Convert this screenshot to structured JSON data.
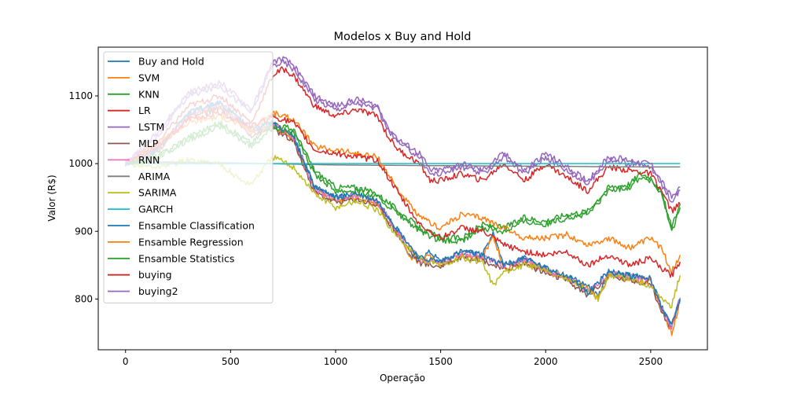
{
  "chart_data": {
    "type": "line",
    "title": "Modelos x Buy and Hold",
    "xlabel": "Operação",
    "ylabel": "Valor (R$)",
    "xlim": [
      -130,
      2770
    ],
    "ylim": [
      725,
      1172
    ],
    "xticks": [
      0,
      500,
      1000,
      1500,
      2000,
      2500
    ],
    "yticks": [
      800,
      900,
      1000,
      1100
    ],
    "grid": false,
    "legend_position": "upper-left",
    "series": [
      {
        "name": "Buy and Hold",
        "color": "#1f77b4",
        "x": [
          0,
          150,
          300,
          450,
          600,
          700,
          800,
          900,
          1000,
          1100,
          1200,
          1250,
          1300,
          1350,
          1400,
          1450,
          1500,
          1600,
          1700,
          1750,
          1800,
          1900,
          2000,
          2100,
          2200,
          2250,
          2300,
          2400,
          2500,
          2550,
          2600,
          2640
        ],
        "y": [
          1000,
          1020,
          1075,
          1090,
          1050,
          1060,
          1040,
          965,
          950,
          955,
          945,
          920,
          900,
          865,
          860,
          870,
          855,
          870,
          865,
          900,
          850,
          860,
          845,
          835,
          820,
          805,
          840,
          835,
          830,
          790,
          760,
          800
        ]
      },
      {
        "name": "SVM",
        "color": "#ff7f0e",
        "x": [
          0,
          150,
          300,
          450,
          600,
          700,
          800,
          900,
          1000,
          1100,
          1200,
          1250,
          1300,
          1350,
          1400,
          1450,
          1500,
          1600,
          1700,
          1750,
          1800,
          1900,
          2000,
          2100,
          2200,
          2250,
          2300,
          2400,
          2500,
          2550,
          2600,
          2640
        ],
        "y": [
          1000,
          1020,
          1070,
          1085,
          1045,
          1055,
          1035,
          960,
          945,
          950,
          940,
          915,
          895,
          860,
          855,
          865,
          850,
          865,
          860,
          895,
          845,
          855,
          840,
          830,
          815,
          800,
          835,
          830,
          825,
          785,
          750,
          795
        ]
      },
      {
        "name": "KNN",
        "color": "#2ca02c",
        "x": [
          0,
          150,
          300,
          450,
          600,
          700,
          800,
          900,
          1000,
          1100,
          1200,
          1300,
          1400,
          1500,
          1600,
          1700,
          1800,
          1900,
          2000,
          2100,
          2200,
          2300,
          2400,
          2450,
          2500,
          2550,
          2600,
          2640
        ],
        "y": [
          1000,
          1010,
          1040,
          1060,
          1030,
          1060,
          1050,
          990,
          965,
          965,
          955,
          930,
          905,
          890,
          890,
          910,
          905,
          920,
          915,
          925,
          930,
          965,
          970,
          985,
          980,
          960,
          905,
          940
        ]
      },
      {
        "name": "LR",
        "color": "#d62728",
        "x": [
          0,
          150,
          300,
          450,
          600,
          700,
          750,
          800,
          900,
          1000,
          1100,
          1200,
          1250,
          1300,
          1400,
          1450,
          1500,
          1600,
          1700,
          1800,
          1900,
          2000,
          2100,
          2200,
          2300,
          2400,
          2500,
          2550,
          2600,
          2640
        ],
        "y": [
          1000,
          1030,
          1085,
          1100,
          1060,
          1130,
          1140,
          1130,
          1085,
          1070,
          1080,
          1070,
          1040,
          1020,
          1000,
          975,
          975,
          985,
          975,
          1000,
          975,
          1000,
          980,
          960,
          995,
          990,
          985,
          960,
          930,
          940
        ]
      },
      {
        "name": "LSTM",
        "color": "#9467bd",
        "x": [
          0,
          150,
          300,
          450,
          600,
          700,
          750,
          800,
          900,
          1000,
          1100,
          1200,
          1250,
          1300,
          1400,
          1450,
          1500,
          1600,
          1700,
          1800,
          1900,
          2000,
          2100,
          2200,
          2300,
          2400,
          2500,
          2550,
          2600,
          2640
        ],
        "y": [
          1000,
          1040,
          1100,
          1115,
          1075,
          1145,
          1150,
          1140,
          1095,
          1080,
          1090,
          1080,
          1050,
          1030,
          1010,
          985,
          985,
          995,
          985,
          1010,
          985,
          1010,
          990,
          970,
          1005,
          1000,
          995,
          970,
          945,
          960
        ]
      },
      {
        "name": "MLP",
        "color": "#8c564b",
        "x": [
          0,
          150,
          300,
          450,
          600,
          700,
          800,
          900,
          1000,
          1100,
          1200,
          1300,
          1400,
          1500,
          1600,
          1700,
          1800,
          1900,
          2000,
          2100,
          2200,
          2300,
          2400,
          2500,
          2550,
          2600,
          2640
        ],
        "y": [
          1000,
          1018,
          1068,
          1082,
          1042,
          1052,
          1032,
          958,
          943,
          948,
          938,
          893,
          853,
          848,
          863,
          858,
          843,
          853,
          838,
          828,
          805,
          833,
          828,
          823,
          783,
          755,
          798
        ]
      },
      {
        "name": "RNN",
        "color": "#e377c2",
        "x": [
          0,
          150,
          300,
          450,
          600,
          700,
          800,
          900,
          1000,
          1100,
          1200,
          1300,
          1400,
          1500,
          1600,
          1700,
          1800,
          1900,
          2000,
          2100,
          2200,
          2300,
          2400,
          2500,
          2550,
          2600,
          2640
        ],
        "y": [
          1000,
          1022,
          1072,
          1088,
          1048,
          1058,
          1038,
          962,
          948,
          953,
          943,
          898,
          858,
          853,
          868,
          863,
          848,
          858,
          843,
          833,
          810,
          838,
          833,
          828,
          788,
          758,
          802
        ]
      },
      {
        "name": "ARIMA",
        "color": "#7f7f7f",
        "x": [
          0,
          500,
          1000,
          1500,
          2000,
          2500,
          2640
        ],
        "y": [
          1003,
          1001,
          998,
          997,
          996,
          995,
          995
        ]
      },
      {
        "name": "SARIMA",
        "color": "#bcbd22",
        "x": [
          0,
          150,
          300,
          450,
          550,
          600,
          650,
          700,
          800,
          900,
          1000,
          1100,
          1200,
          1250,
          1300,
          1400,
          1500,
          1600,
          1700,
          1750,
          1800,
          1900,
          2000,
          2100,
          2200,
          2250,
          2300,
          2400,
          2500,
          2550,
          2600,
          2640
        ],
        "y": [
          1000,
          995,
          1005,
          1000,
          975,
          970,
          990,
          1010,
          995,
          955,
          935,
          945,
          930,
          910,
          890,
          860,
          850,
          860,
          855,
          820,
          840,
          850,
          845,
          830,
          815,
          800,
          835,
          830,
          820,
          800,
          790,
          835
        ]
      },
      {
        "name": "GARCH",
        "color": "#17becf",
        "x": [
          0,
          2640
        ],
        "y": [
          1000,
          1000
        ]
      },
      {
        "name": "Ensamble Classification",
        "color": "#1f77b4",
        "x": [
          0,
          150,
          300,
          450,
          600,
          700,
          800,
          900,
          1000,
          1100,
          1200,
          1300,
          1400,
          1500,
          1600,
          1700,
          1800,
          1900,
          2000,
          2100,
          2200,
          2300,
          2400,
          2500,
          2550,
          2600,
          2640
        ],
        "y": [
          1000,
          1020,
          1075,
          1090,
          1050,
          1060,
          1040,
          965,
          950,
          955,
          945,
          900,
          860,
          855,
          870,
          865,
          850,
          860,
          845,
          835,
          810,
          840,
          835,
          830,
          790,
          760,
          800
        ]
      },
      {
        "name": "Ensamble Regression",
        "color": "#ff7f0e",
        "x": [
          0,
          150,
          300,
          450,
          600,
          700,
          800,
          900,
          1000,
          1100,
          1200,
          1300,
          1400,
          1500,
          1600,
          1700,
          1800,
          1900,
          2000,
          2100,
          2200,
          2300,
          2400,
          2500,
          2550,
          2600,
          2640
        ],
        "y": [
          1000,
          1030,
          1060,
          1070,
          1050,
          1075,
          1065,
          1025,
          1020,
          1015,
          1010,
          960,
          920,
          905,
          925,
          920,
          905,
          890,
          890,
          895,
          880,
          890,
          875,
          890,
          875,
          840,
          865
        ]
      },
      {
        "name": "Ensamble Statistics",
        "color": "#2ca02c",
        "x": [
          0,
          150,
          300,
          450,
          600,
          700,
          800,
          900,
          1000,
          1100,
          1200,
          1300,
          1400,
          1500,
          1600,
          1700,
          1800,
          1900,
          2000,
          2100,
          2200,
          2300,
          2400,
          2450,
          2500,
          2550,
          2600,
          2640
        ],
        "y": [
          1000,
          1008,
          1035,
          1055,
          1025,
          1055,
          1045,
          985,
          960,
          960,
          950,
          925,
          900,
          885,
          885,
          905,
          900,
          915,
          910,
          920,
          925,
          960,
          965,
          980,
          975,
          955,
          900,
          935
        ]
      },
      {
        "name": "buying",
        "color": "#d62728",
        "x": [
          0,
          150,
          300,
          450,
          600,
          700,
          800,
          900,
          1000,
          1100,
          1200,
          1300,
          1400,
          1500,
          1600,
          1700,
          1800,
          1900,
          2000,
          2100,
          2200,
          2300,
          2400,
          2500,
          2550,
          2600,
          2640
        ],
        "y": [
          1000,
          1025,
          1065,
          1075,
          1055,
          1070,
          1060,
          1020,
          1015,
          1010,
          1005,
          955,
          910,
          890,
          905,
          900,
          880,
          870,
          865,
          870,
          850,
          865,
          850,
          860,
          845,
          835,
          855
        ]
      },
      {
        "name": "buying2",
        "color": "#9467bd",
        "x": [
          0,
          150,
          300,
          450,
          600,
          700,
          750,
          800,
          900,
          1000,
          1100,
          1200,
          1250,
          1300,
          1400,
          1450,
          1500,
          1600,
          1700,
          1800,
          1900,
          2000,
          2100,
          2200,
          2300,
          2400,
          2500,
          2550,
          2600,
          2640
        ],
        "y": [
          1000,
          1045,
          1105,
          1120,
          1080,
          1150,
          1155,
          1145,
          1100,
          1085,
          1095,
          1085,
          1055,
          1035,
          1015,
          990,
          990,
          1000,
          990,
          1015,
          990,
          1015,
          995,
          975,
          1010,
          1005,
          1000,
          975,
          950,
          965
        ]
      }
    ]
  }
}
